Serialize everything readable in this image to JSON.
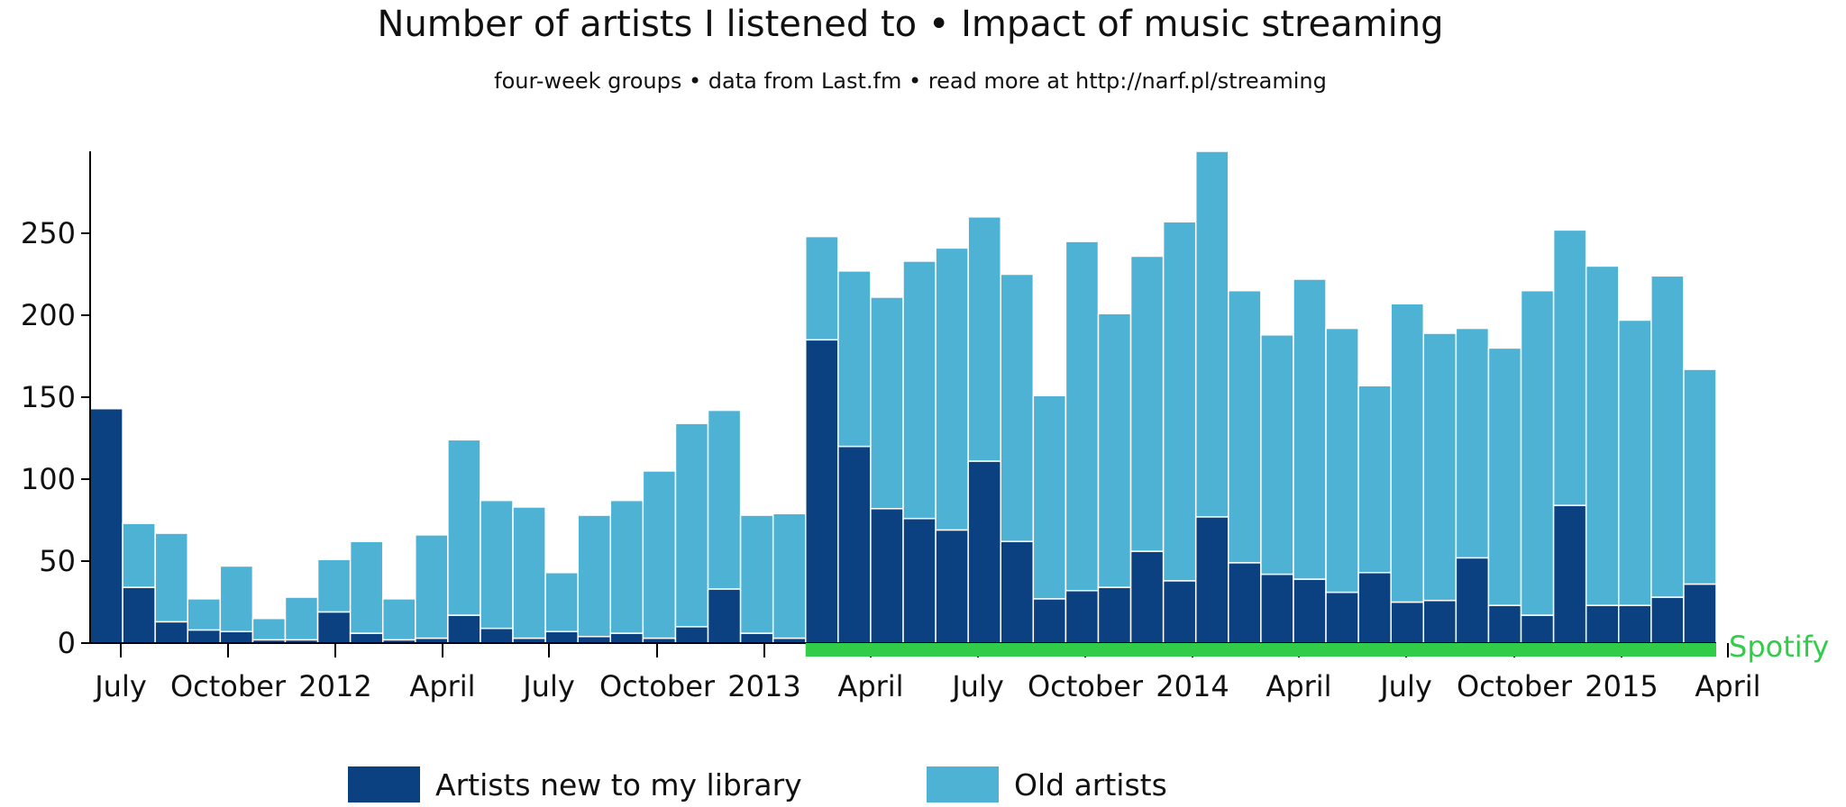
{
  "title": "Number of artists I listened to • Impact of music streaming",
  "subtitle": "four-week groups • data from Last.fm • read more at http://narf.pl/streaming",
  "colors": {
    "new": "#0b4181",
    "old": "#4eb2d5",
    "streaming": "#31cc49",
    "axis": "#000000"
  },
  "legend": {
    "new_label": "Artists new to my library",
    "old_label": "Old artists"
  },
  "chart_data": {
    "type": "bar",
    "stacked": true,
    "title": "Number of artists I listened to • Impact of music streaming",
    "subtitle": "four-week groups • data from Last.fm • read more at http://narf.pl/streaming",
    "ylim": [
      0,
      300
    ],
    "yticks": [
      0,
      50,
      100,
      150,
      200,
      250
    ],
    "xticks": [
      "July",
      "October",
      "2012",
      "April",
      "July",
      "October",
      "2013",
      "April",
      "July",
      "October",
      "2014",
      "April",
      "July",
      "October",
      "2015",
      "April"
    ],
    "legend_position": "bottom",
    "grid": false,
    "series": [
      {
        "name": "Artists new to my library",
        "values": [
          143,
          34,
          13,
          8,
          7,
          2,
          2,
          19,
          6,
          2,
          3,
          17,
          9,
          3,
          7,
          4,
          6,
          3,
          10,
          33,
          6,
          3,
          185,
          120,
          82,
          76,
          69,
          111,
          62,
          27,
          32,
          34,
          56,
          38,
          77,
          49,
          42,
          39,
          31,
          43,
          25,
          26,
          52,
          23,
          17,
          84,
          23,
          23,
          28,
          36
        ]
      },
      {
        "name": "Old artists",
        "values": [
          0,
          39,
          54,
          19,
          40,
          13,
          26,
          32,
          56,
          25,
          63,
          107,
          78,
          80,
          36,
          74,
          81,
          102,
          124,
          109,
          72,
          76,
          63,
          107,
          129,
          157,
          172,
          149,
          163,
          124,
          213,
          167,
          180,
          219,
          223,
          166,
          146,
          183,
          161,
          114,
          182,
          163,
          140,
          157,
          198,
          168,
          207,
          174,
          196,
          131
        ]
      }
    ],
    "annotations": [
      {
        "label": "Spotify",
        "from_index": 22,
        "to_index": 49
      }
    ]
  }
}
